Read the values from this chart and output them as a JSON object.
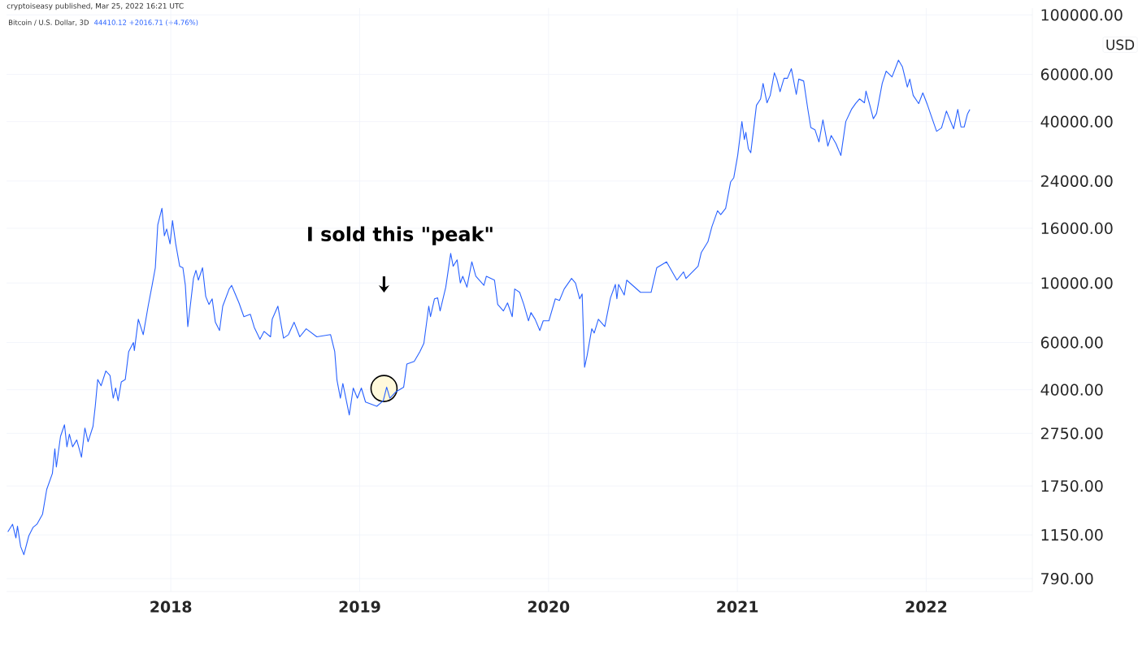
{
  "chart_data": {
    "type": "line",
    "title": "Bitcoin / U.S. Dollar, 3D",
    "subtitle": "44410.12 +2016.71 (+4.76%)",
    "ylabel": "USD",
    "annotations": [
      "cryptoiseasy published, Mar 25, 2022 16:21 UTC",
      "I sold this \"peak\""
    ],
    "log": true,
    "grid": true,
    "xlim": [
      2017.13,
      2022.562
    ],
    "xticks": [
      2018,
      2019,
      2020,
      2021,
      2022
    ],
    "ylim": [
      707,
      106000
    ],
    "yticks": [
      {
        "value": 790,
        "label": "790.00"
      },
      {
        "value": 1150,
        "label": "1150.00"
      },
      {
        "value": 1750,
        "label": "1750.00"
      },
      {
        "value": 2750,
        "label": "2750.00"
      },
      {
        "value": 4000,
        "label": "4000.00"
      },
      {
        "value": 6000,
        "label": "6000.00"
      },
      {
        "value": 10000,
        "label": "10000.00"
      },
      {
        "value": 16000,
        "label": "16000.00"
      },
      {
        "value": 24000,
        "label": "24000.00"
      },
      {
        "value": 40000,
        "label": "40000.00"
      },
      {
        "value": 60000,
        "label": "60000.00"
      },
      {
        "value": 100000,
        "label": "100000.00"
      }
    ],
    "x": [
      2017.137,
      2017.162,
      2017.18,
      2017.188,
      2017.205,
      2017.222,
      2017.248,
      2017.27,
      2017.291,
      2017.321,
      2017.343,
      2017.373,
      2017.386,
      2017.394,
      2017.416,
      2017.437,
      2017.45,
      2017.463,
      2017.48,
      2017.502,
      2017.527,
      2017.545,
      2017.562,
      2017.588,
      2017.6,
      2017.613,
      2017.631,
      2017.656,
      2017.678,
      2017.695,
      2017.708,
      2017.721,
      2017.738,
      2017.759,
      2017.777,
      2017.802,
      2017.807,
      2017.828,
      2017.854,
      2017.88,
      2017.901,
      2017.918,
      2017.931,
      2017.953,
      2017.966,
      2017.978,
      2017.996,
      2018.009,
      2018.026,
      2018.047,
      2018.064,
      2018.077,
      2018.09,
      2018.103,
      2018.12,
      2018.133,
      2018.146,
      2018.168,
      2018.185,
      2018.202,
      2018.219,
      2018.236,
      2018.258,
      2018.275,
      2018.309,
      2018.322,
      2018.361,
      2018.387,
      2018.421,
      2018.442,
      2018.472,
      2018.494,
      2018.528,
      2018.537,
      2018.567,
      2018.597,
      2018.623,
      2018.653,
      2018.683,
      2018.717,
      2018.773,
      2018.846,
      2018.868,
      2018.88,
      2018.898,
      2018.911,
      2018.945,
      2018.966,
      2018.988,
      2019.009,
      2019.031,
      2019.091,
      2019.125,
      2019.143,
      2019.16,
      2019.19,
      2019.233,
      2019.25,
      2019.289,
      2019.319,
      2019.34,
      2019.366,
      2019.375,
      2019.396,
      2019.413,
      2019.426,
      2019.456,
      2019.482,
      2019.495,
      2019.516,
      2019.533,
      2019.546,
      2019.568,
      2019.594,
      2019.615,
      2019.658,
      2019.671,
      2019.714,
      2019.731,
      2019.761,
      2019.783,
      2019.808,
      2019.821,
      2019.847,
      2019.869,
      2019.894,
      2019.907,
      2019.929,
      2019.954,
      2019.972,
      2020.002,
      2020.036,
      2020.058,
      2020.083,
      2020.122,
      2020.143,
      2020.165,
      2020.178,
      2020.191,
      2020.204,
      2020.229,
      2020.242,
      2020.264,
      2020.298,
      2020.328,
      2020.354,
      2020.362,
      2020.371,
      2020.401,
      2020.414,
      2020.487,
      2020.543,
      2020.573,
      2020.625,
      2020.68,
      2020.715,
      2020.728,
      2020.792,
      2020.809,
      2020.844,
      2020.865,
      2020.895,
      2020.912,
      2020.938,
      2020.964,
      2020.981,
      2021.002,
      2021.024,
      2021.037,
      2021.045,
      2021.058,
      2021.071,
      2021.101,
      2021.123,
      2021.136,
      2021.157,
      2021.174,
      2021.196,
      2021.209,
      2021.226,
      2021.247,
      2021.265,
      2021.286,
      2021.312,
      2021.325,
      2021.351,
      2021.372,
      2021.389,
      2021.411,
      2021.432,
      2021.453,
      2021.479,
      2021.497,
      2021.522,
      2021.548,
      2021.574,
      2021.604,
      2021.626,
      2021.647,
      2021.673,
      2021.681,
      2021.699,
      2021.72,
      2021.737,
      2021.767,
      2021.788,
      2021.819,
      2021.853,
      2021.874,
      2021.9,
      2021.913,
      2021.931,
      2021.96,
      2021.982,
      2022.004,
      2022.025,
      2022.055,
      2022.081,
      2022.107,
      2022.145,
      2022.167,
      2022.184,
      2022.201,
      2022.218,
      2022.231
    ],
    "series": [
      {
        "color": "#2962ff",
        "values": [
          1180,
          1260,
          1120,
          1240,
          1040,
          970,
          1140,
          1225,
          1260,
          1375,
          1700,
          1950,
          2410,
          2060,
          2680,
          2960,
          2450,
          2730,
          2450,
          2600,
          2240,
          2880,
          2560,
          2920,
          3470,
          4370,
          4140,
          4700,
          4520,
          3720,
          4060,
          3640,
          4280,
          4370,
          5550,
          6000,
          5600,
          7330,
          6420,
          8200,
          9800,
          11400,
          16500,
          19000,
          15000,
          15900,
          14000,
          17100,
          14000,
          11550,
          11400,
          9800,
          6880,
          8200,
          10400,
          11150,
          10250,
          11400,
          8910,
          8320,
          8730,
          7140,
          6650,
          8200,
          9500,
          9800,
          8430,
          7490,
          7650,
          6830,
          6170,
          6600,
          6300,
          7330,
          8200,
          6230,
          6420,
          7140,
          6300,
          6750,
          6300,
          6420,
          5550,
          4340,
          3720,
          4220,
          3220,
          4060,
          3720,
          4060,
          3600,
          3470,
          3640,
          4090,
          3720,
          3920,
          4090,
          4990,
          5100,
          5550,
          5960,
          8200,
          7490,
          8730,
          8800,
          7870,
          9650,
          12900,
          11550,
          12200,
          10000,
          10600,
          9650,
          12000,
          10600,
          9800,
          10600,
          10250,
          8320,
          7870,
          8430,
          7490,
          9500,
          9230,
          8320,
          7230,
          7760,
          7330,
          6650,
          7230,
          7230,
          8730,
          8610,
          9500,
          10400,
          10000,
          8730,
          9100,
          4850,
          5350,
          6750,
          6510,
          7330,
          6880,
          8800,
          9880,
          8730,
          9880,
          9020,
          10250,
          9230,
          9230,
          11400,
          12000,
          10250,
          11000,
          10400,
          11550,
          13000,
          14250,
          16200,
          18600,
          18000,
          19000,
          23800,
          24700,
          30000,
          40000,
          34300,
          36500,
          31700,
          30600,
          46000,
          48600,
          55500,
          47000,
          50100,
          60800,
          57600,
          51700,
          58000,
          58000,
          63000,
          50500,
          57600,
          56700,
          45000,
          38000,
          37300,
          33600,
          40600,
          32400,
          35500,
          33100,
          29900,
          40000,
          44400,
          46700,
          48600,
          47000,
          52000,
          46700,
          41000,
          42900,
          55500,
          61700,
          58700,
          67800,
          64000,
          53800,
          57600,
          50100,
          46700,
          51200,
          46700,
          42300,
          36800,
          37900,
          43800,
          37600,
          44400,
          38200,
          38200,
          42600,
          44400
        ]
      }
    ]
  }
}
